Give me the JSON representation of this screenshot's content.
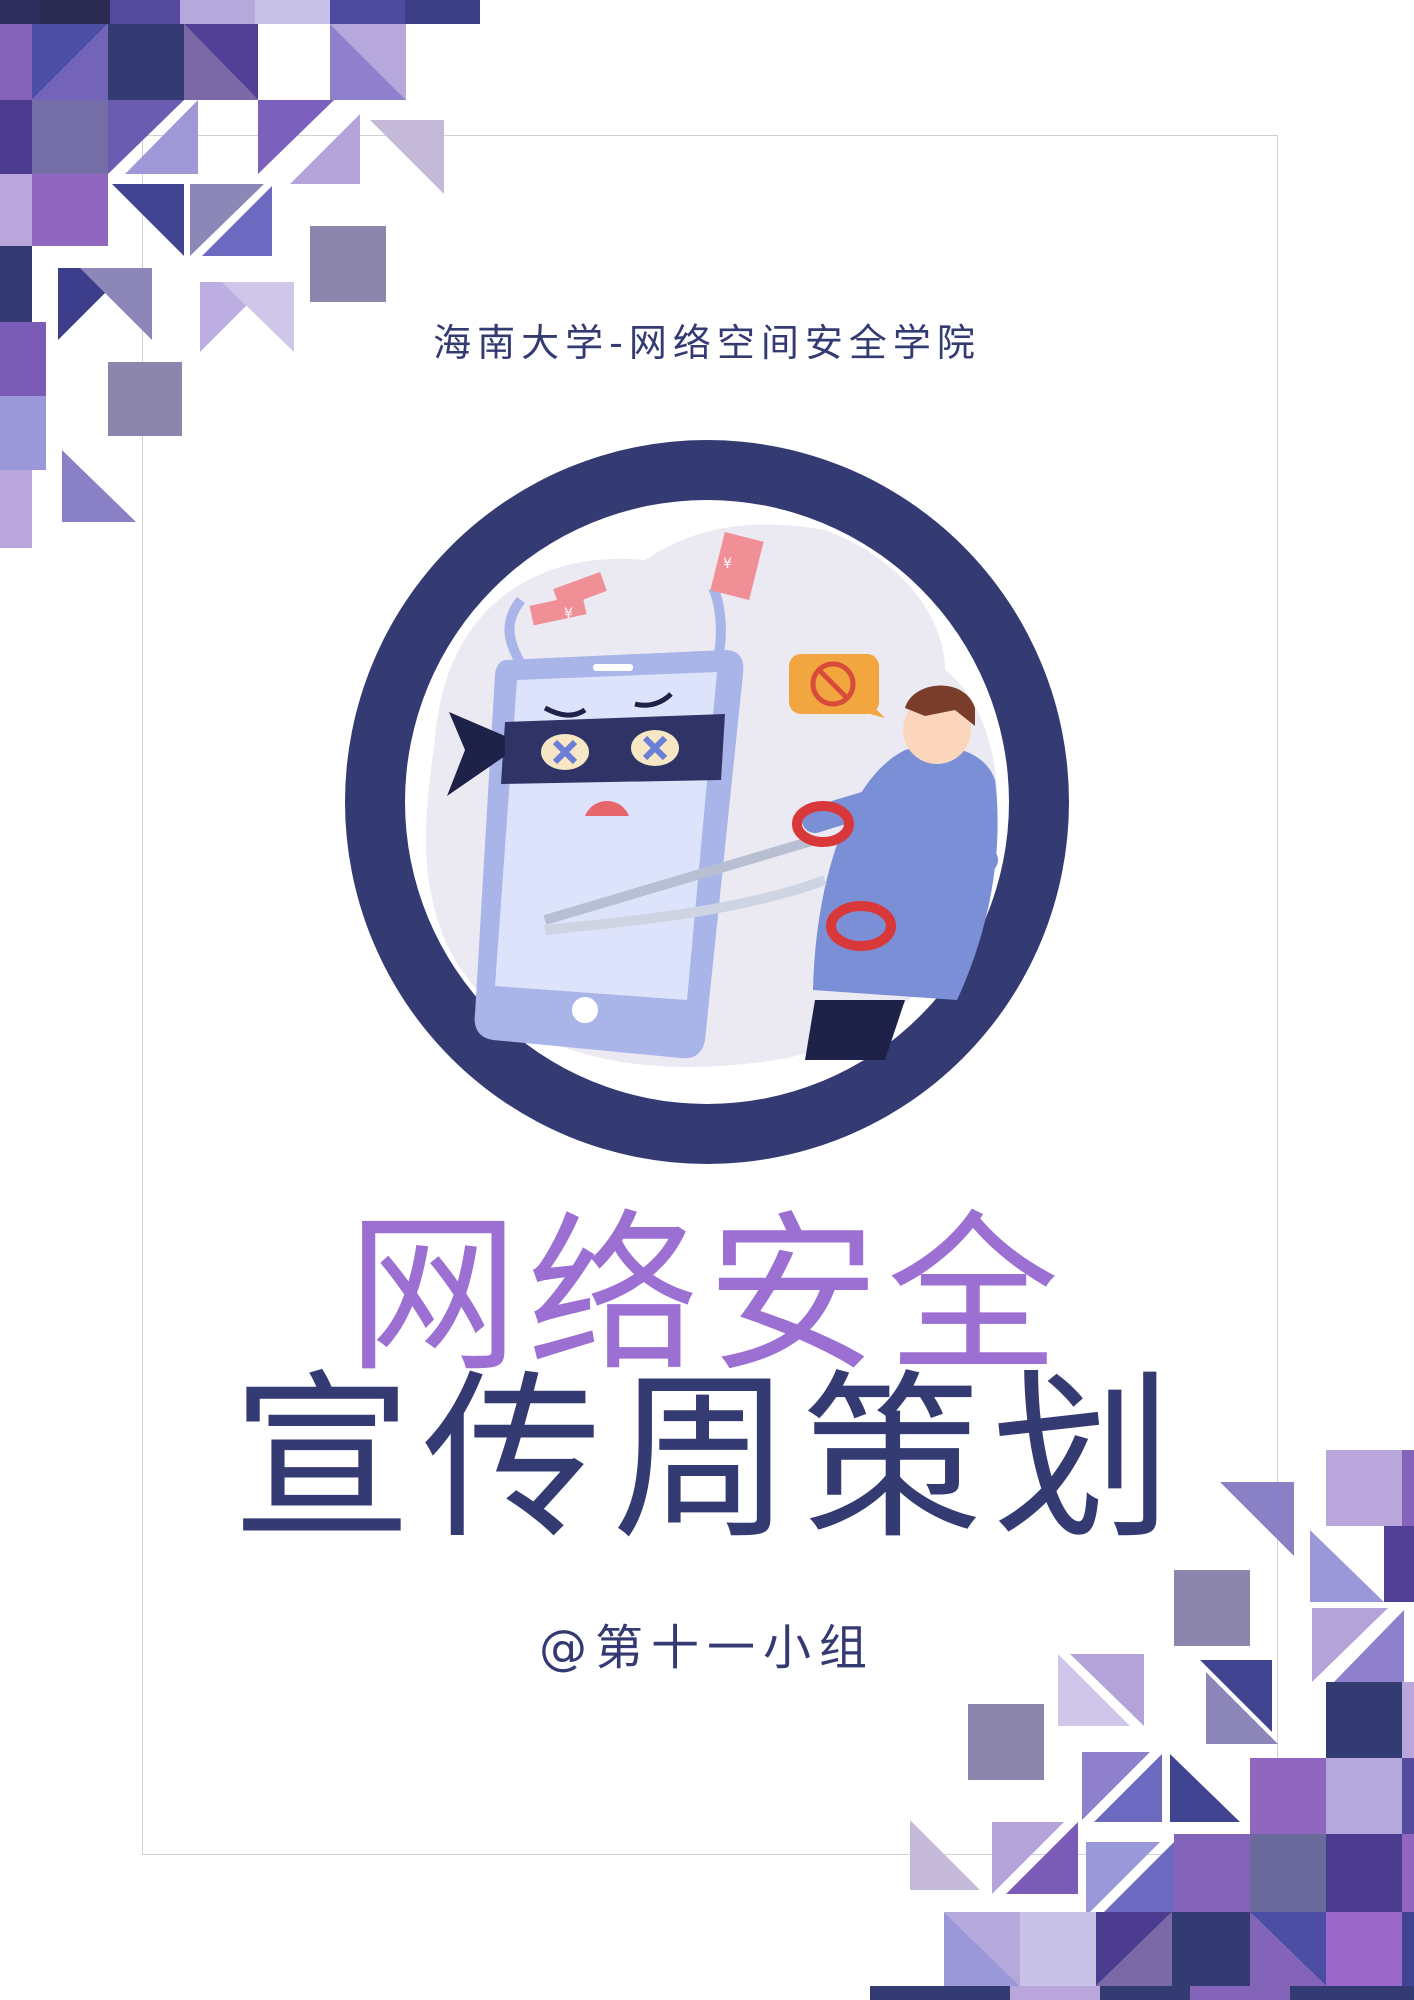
{
  "poster": {
    "institution": "海南大学-网络空间安全学院",
    "title_line1": "网络安全",
    "title_line2": "宣传周策划",
    "team": "@第十一小组"
  },
  "illustration": {
    "subject": "thief phone with scissors cutting money",
    "money_symbol": "¥"
  },
  "colors": {
    "navy": "#343a72",
    "purple": "#9c6fd2",
    "frame": "#cfcfd8"
  }
}
